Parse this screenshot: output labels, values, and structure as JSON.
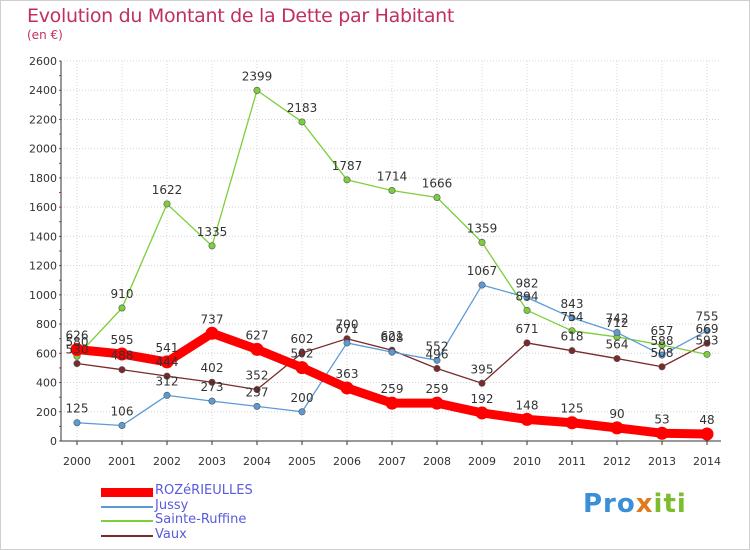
{
  "chart_data": {
    "type": "line",
    "title": "Evolution du Montant de la Dette par Habitant",
    "subtitle": "(en €)",
    "x": [
      "2000",
      "2001",
      "2002",
      "2003",
      "2004",
      "2005",
      "2006",
      "2007",
      "2008",
      "2009",
      "2010",
      "2011",
      "2012",
      "2013",
      "2014"
    ],
    "ylim": [
      0,
      2600
    ],
    "yticks": [
      0,
      200,
      400,
      600,
      800,
      1000,
      1200,
      1400,
      1600,
      1800,
      2000,
      2200,
      2400,
      2600
    ],
    "grid": true,
    "legend": "bottom-left",
    "series": [
      {
        "name": "ROZéRIEULLES",
        "color": "#ff0000",
        "values": [
          626,
          595,
          541,
          737,
          627,
          502,
          363,
          259,
          259,
          192,
          148,
          125,
          90,
          53,
          48
        ]
      },
      {
        "name": "Jussy",
        "color": "#5b9bd5",
        "values": [
          125,
          106,
          312,
          273,
          237,
          200,
          671,
          608,
          552,
          1067,
          982,
          843,
          742,
          588,
          755
        ]
      },
      {
        "name": "Sainte-Ruffine",
        "color": "#7ccf3a",
        "values": [
          580,
          910,
          1622,
          1335,
          2399,
          2183,
          1787,
          1714,
          1666,
          1359,
          894,
          754,
          712,
          657,
          593
        ]
      },
      {
        "name": "Vaux",
        "color": "#7a2a2a",
        "values": [
          530,
          488,
          444,
          402,
          352,
          602,
          700,
          621,
          496,
          395,
          671,
          618,
          564,
          508,
          669
        ]
      }
    ],
    "data_labels": [
      [
        626,
        595,
        541,
        737,
        627,
        502,
        363,
        259,
        259,
        192,
        148,
        125,
        90,
        53,
        48
      ],
      [
        125,
        106,
        312,
        273,
        237,
        200,
        671,
        608,
        552,
        1067,
        982,
        843,
        742,
        588,
        755
      ],
      [
        580,
        910,
        1622,
        1335,
        2399,
        2183,
        1787,
        1714,
        1666,
        1359,
        894,
        754,
        712,
        657,
        593
      ],
      [
        530,
        488,
        444,
        402,
        352,
        602,
        700,
        621,
        496,
        395,
        671,
        618,
        564,
        508,
        669
      ]
    ]
  },
  "logo": {
    "p1": "Pro",
    "p2": "x",
    "p3": "iti"
  }
}
